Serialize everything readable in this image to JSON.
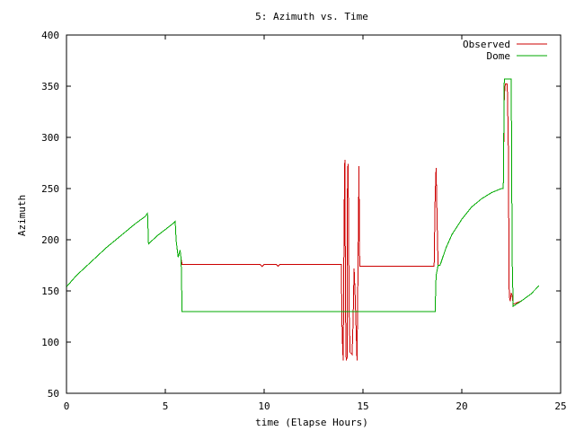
{
  "chart_data": {
    "type": "line",
    "title": "5: Azimuth vs. Time",
    "xlabel": "time (Elapse Hours)",
    "ylabel": "Azimuth",
    "xlim": [
      0,
      25
    ],
    "ylim": [
      50,
      400
    ],
    "x_ticks": [
      0,
      5,
      10,
      15,
      20,
      25
    ],
    "y_ticks": [
      50,
      100,
      150,
      200,
      250,
      300,
      350,
      400
    ],
    "grid": false,
    "legend_position": "top-right",
    "series": [
      {
        "name": "Observed",
        "color": "#cc0000",
        "points": [
          [
            0.0,
            154
          ],
          [
            0.5,
            165
          ],
          [
            1.0,
            174
          ],
          [
            1.5,
            183
          ],
          [
            2.0,
            192
          ],
          [
            2.5,
            200
          ],
          [
            3.0,
            208
          ],
          [
            3.5,
            216
          ],
          [
            4.0,
            223
          ],
          [
            4.1,
            226
          ],
          [
            4.15,
            196
          ],
          [
            4.6,
            204
          ],
          [
            5.0,
            210
          ],
          [
            5.4,
            216
          ],
          [
            5.5,
            218
          ],
          [
            5.55,
            199
          ],
          [
            5.65,
            183
          ],
          [
            5.75,
            190
          ],
          [
            5.8,
            181
          ],
          [
            5.85,
            176
          ],
          [
            9.8,
            176
          ],
          [
            9.9,
            174
          ],
          [
            10.0,
            176
          ],
          [
            10.6,
            176
          ],
          [
            10.7,
            174
          ],
          [
            10.8,
            176
          ],
          [
            13.9,
            176
          ],
          [
            13.95,
            106
          ],
          [
            14.0,
            82
          ],
          [
            14.05,
            228
          ],
          [
            14.08,
            278
          ],
          [
            14.12,
            130
          ],
          [
            14.15,
            82
          ],
          [
            14.2,
            85
          ],
          [
            14.22,
            268
          ],
          [
            14.25,
            274
          ],
          [
            14.3,
            130
          ],
          [
            14.35,
            90
          ],
          [
            14.45,
            88
          ],
          [
            14.5,
            120
          ],
          [
            14.55,
            172
          ],
          [
            14.6,
            148
          ],
          [
            14.7,
            82
          ],
          [
            14.75,
            175
          ],
          [
            14.8,
            272
          ],
          [
            14.82,
            190
          ],
          [
            14.85,
            174
          ],
          [
            18.6,
            174
          ],
          [
            18.65,
            240
          ],
          [
            18.7,
            270
          ],
          [
            18.75,
            220
          ],
          [
            18.8,
            175
          ],
          [
            18.9,
            175
          ],
          [
            19.2,
            192
          ],
          [
            19.5,
            205
          ],
          [
            20.0,
            220
          ],
          [
            20.5,
            232
          ],
          [
            21.0,
            240
          ],
          [
            21.5,
            246
          ],
          [
            22.0,
            250
          ],
          [
            22.1,
            250
          ],
          [
            22.15,
            340
          ],
          [
            22.2,
            352
          ],
          [
            22.3,
            352
          ],
          [
            22.35,
            300
          ],
          [
            22.4,
            145
          ],
          [
            22.45,
            140
          ],
          [
            22.5,
            148
          ],
          [
            22.55,
            145
          ],
          [
            22.6,
            137
          ],
          [
            23.0,
            140
          ],
          [
            23.5,
            147
          ],
          [
            23.9,
            155
          ]
        ]
      },
      {
        "name": "Dome",
        "color": "#00aa00",
        "points": [
          [
            0.0,
            154
          ],
          [
            0.5,
            165
          ],
          [
            1.0,
            174
          ],
          [
            1.5,
            183
          ],
          [
            2.0,
            192
          ],
          [
            2.5,
            200
          ],
          [
            3.0,
            208
          ],
          [
            3.5,
            216
          ],
          [
            4.0,
            223
          ],
          [
            4.1,
            226
          ],
          [
            4.15,
            196
          ],
          [
            4.6,
            204
          ],
          [
            5.0,
            210
          ],
          [
            5.4,
            216
          ],
          [
            5.5,
            218
          ],
          [
            5.55,
            199
          ],
          [
            5.65,
            183
          ],
          [
            5.75,
            190
          ],
          [
            5.8,
            181
          ],
          [
            5.85,
            130
          ],
          [
            18.65,
            130
          ],
          [
            18.7,
            165
          ],
          [
            18.8,
            175
          ],
          [
            18.9,
            175
          ],
          [
            19.2,
            192
          ],
          [
            19.5,
            205
          ],
          [
            20.0,
            220
          ],
          [
            20.5,
            232
          ],
          [
            21.0,
            240
          ],
          [
            21.5,
            246
          ],
          [
            22.0,
            250
          ],
          [
            22.1,
            250
          ],
          [
            22.15,
            357
          ],
          [
            22.5,
            357
          ],
          [
            22.55,
            180
          ],
          [
            22.6,
            135
          ],
          [
            23.0,
            140
          ],
          [
            23.5,
            147
          ],
          [
            23.9,
            155
          ]
        ]
      }
    ]
  }
}
